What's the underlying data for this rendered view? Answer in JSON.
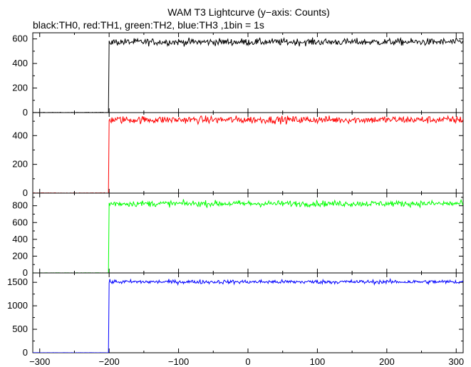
{
  "chart_data": {
    "type": "line",
    "title": "WAM T3 Lightcurve (y−axis: Counts)",
    "subtitle": "black:TH0, red:TH1, green:TH2, blue:TH3 ,1bin = 1s",
    "xlim": [
      -310,
      310
    ],
    "x_ticks": [
      -300,
      -200,
      -100,
      0,
      100,
      200,
      300
    ],
    "x_tick_labels": [
      "−300",
      "−200",
      "−100",
      "0",
      "100",
      "200",
      "300"
    ],
    "trigger_x": -200,
    "grid": false,
    "legend": "none",
    "panels": [
      {
        "name": "TH0",
        "color": "#000000",
        "ylim": [
          0,
          650
        ],
        "y_ticks": [
          0,
          200,
          400,
          600
        ],
        "y_tick_labels": [
          "0",
          "200",
          "400",
          "600"
        ],
        "pre_level": 0,
        "post_level": 575,
        "noise": 20
      },
      {
        "name": "TH1",
        "color": "#ff0000",
        "ylim": [
          0,
          560
        ],
        "y_ticks": [
          0,
          200,
          400
        ],
        "y_tick_labels": [
          "0",
          "200",
          "400"
        ],
        "pre_level": 0,
        "post_level": 510,
        "noise": 18
      },
      {
        "name": "TH2",
        "color": "#00ff00",
        "ylim": [
          0,
          950
        ],
        "y_ticks": [
          0,
          200,
          400,
          600,
          800
        ],
        "y_tick_labels": [
          "0",
          "200",
          "400",
          "600",
          "800"
        ],
        "pre_level": 0,
        "post_level": 825,
        "noise": 25
      },
      {
        "name": "TH3",
        "color": "#0000ff",
        "ylim": [
          0,
          1700
        ],
        "y_ticks": [
          0,
          500,
          1000,
          1500
        ],
        "y_tick_labels": [
          "0",
          "500",
          "1000",
          "1500"
        ],
        "pre_level": 0,
        "post_level": 1510,
        "noise": 30
      }
    ]
  }
}
